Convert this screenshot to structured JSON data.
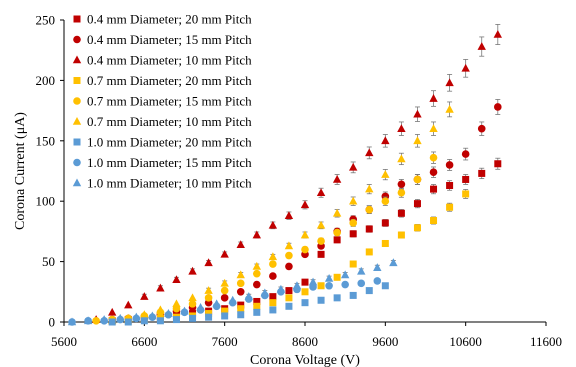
{
  "chart_data": {
    "type": "scatter",
    "title": "",
    "xlabel": "Corona Voltage (V)",
    "ylabel": "Corona Current (μA)",
    "xlim": [
      5600,
      11600
    ],
    "ylim": [
      0,
      250
    ],
    "xticks": [
      5600,
      6600,
      7600,
      8600,
      9600,
      10600,
      11600
    ],
    "yticks": [
      0,
      50,
      100,
      150,
      200,
      250
    ],
    "grid": false,
    "legend_position": "top-left",
    "series": [
      {
        "name": "0.4 mm Diameter; 20 mm Pitch",
        "color": "#C00000",
        "marker": "square",
        "error_bars": true,
        "x": [
          6200,
          6400,
          6600,
          6800,
          7000,
          7200,
          7400,
          7600,
          7800,
          8000,
          8200,
          8400,
          8600,
          8800,
          9000,
          9200,
          9400,
          9600,
          9800,
          10000,
          10200,
          10400,
          10600,
          10800,
          11000
        ],
        "y": [
          1,
          2,
          3,
          4,
          5,
          7,
          9,
          11,
          14,
          17,
          21,
          26,
          33,
          56,
          68,
          73,
          77,
          82,
          90,
          98,
          110,
          113,
          118,
          123,
          131
        ]
      },
      {
        "name": "0.4 mm Diameter; 15 mm Pitch",
        "color": "#C00000",
        "marker": "circle",
        "error_bars": true,
        "x": [
          6200,
          6400,
          6600,
          6800,
          7000,
          7200,
          7400,
          7600,
          7800,
          8000,
          8200,
          8400,
          8600,
          8800,
          9000,
          9200,
          9400,
          9600,
          9800,
          10000,
          10200,
          10400,
          10600,
          10800,
          11000
        ],
        "y": [
          2,
          3,
          4,
          6,
          9,
          12,
          16,
          20,
          25,
          31,
          38,
          46,
          56,
          63,
          75,
          85,
          93,
          104,
          114,
          118,
          124,
          130,
          139,
          160,
          178
        ]
      },
      {
        "name": "0.4 mm Diameter; 10 mm Pitch",
        "color": "#C00000",
        "marker": "triangle",
        "error_bars": true,
        "x": [
          6000,
          6200,
          6400,
          6600,
          6800,
          7000,
          7200,
          7400,
          7600,
          7800,
          8000,
          8200,
          8400,
          8600,
          8800,
          9000,
          9200,
          9400,
          9600,
          9800,
          10000,
          10200,
          10400,
          10600,
          10800,
          11000
        ],
        "y": [
          2,
          8,
          14,
          21,
          28,
          35,
          42,
          49,
          56,
          64,
          72,
          80,
          88,
          97,
          107,
          118,
          128,
          140,
          150,
          160,
          172,
          185,
          198,
          210,
          228,
          238
        ]
      },
      {
        "name": "0.7 mm Diameter; 20 mm Pitch",
        "color": "#FFC000",
        "marker": "square",
        "error_bars": true,
        "x": [
          6200,
          6400,
          6600,
          6800,
          7000,
          7200,
          7400,
          7600,
          7800,
          8000,
          8200,
          8400,
          8600,
          8800,
          9000,
          9200,
          9400,
          9600,
          9800,
          10000,
          10200,
          10400,
          10600
        ],
        "y": [
          1,
          1,
          2,
          3,
          4,
          5,
          7,
          9,
          11,
          13,
          16,
          20,
          25,
          30,
          37,
          48,
          58,
          65,
          72,
          78,
          84,
          95,
          106
        ]
      },
      {
        "name": "0.7 mm Diameter; 15 mm Pitch",
        "color": "#FFC000",
        "marker": "circle",
        "error_bars": true,
        "x": [
          6000,
          6200,
          6400,
          6600,
          6800,
          7000,
          7200,
          7400,
          7600,
          7800,
          8000,
          8200,
          8400,
          8600,
          8800,
          9000,
          9200,
          9400,
          9600,
          9800,
          10000,
          10200
        ],
        "y": [
          1,
          2,
          3,
          5,
          8,
          11,
          15,
          20,
          26,
          32,
          40,
          48,
          55,
          60,
          67,
          74,
          82,
          93,
          100,
          107,
          118,
          136
        ]
      },
      {
        "name": "0.7 mm Diameter; 10 mm Pitch",
        "color": "#FFC000",
        "marker": "triangle",
        "error_bars": true,
        "x": [
          6200,
          6400,
          6600,
          6800,
          7000,
          7200,
          7400,
          7600,
          7800,
          8000,
          8200,
          8400,
          8600,
          8800,
          9000,
          9200,
          9400,
          9600,
          9800,
          10000,
          10200,
          10400
        ],
        "y": [
          1,
          3,
          6,
          10,
          15,
          20,
          26,
          32,
          39,
          46,
          54,
          63,
          72,
          80,
          90,
          100,
          110,
          122,
          135,
          150,
          160,
          176
        ]
      },
      {
        "name": "1.0 mm Diameter; 20 mm Pitch",
        "color": "#5B9BD5",
        "marker": "square",
        "error_bars": false,
        "x": [
          6200,
          6400,
          6600,
          6800,
          7000,
          7200,
          7400,
          7600,
          7800,
          8000,
          8200,
          8400,
          8600,
          8800,
          9000,
          9200,
          9400,
          9600
        ],
        "y": [
          0,
          0,
          1,
          1,
          2,
          3,
          4,
          5,
          6,
          8,
          10,
          13,
          16,
          18,
          20,
          22,
          26,
          30
        ]
      },
      {
        "name": "1.0 mm Diameter; 15 mm Pitch",
        "color": "#5B9BD5",
        "marker": "circle",
        "error_bars": false,
        "x": [
          5700,
          5900,
          6100,
          6300,
          6500,
          6700,
          6900,
          7100,
          7300,
          7500,
          7700,
          7900,
          8100,
          8300,
          8500,
          8700,
          8900,
          9100,
          9300,
          9500
        ],
        "y": [
          0,
          1,
          1,
          2,
          3,
          4,
          6,
          8,
          10,
          13,
          16,
          19,
          22,
          25,
          27,
          29,
          30,
          31,
          32,
          34
        ]
      },
      {
        "name": "1.0 mm Diameter; 10 mm Pitch",
        "color": "#5B9BD5",
        "marker": "triangle",
        "error_bars": true,
        "x": [
          5700,
          5900,
          6100,
          6300,
          6500,
          6700,
          6900,
          7100,
          7300,
          7500,
          7700,
          7900,
          8100,
          8300,
          8500,
          8700,
          8900,
          9100,
          9300,
          9500,
          9700
        ],
        "y": [
          0,
          1,
          2,
          3,
          4,
          5,
          7,
          9,
          12,
          15,
          18,
          21,
          24,
          27,
          30,
          33,
          36,
          39,
          42,
          45,
          49
        ]
      }
    ]
  }
}
